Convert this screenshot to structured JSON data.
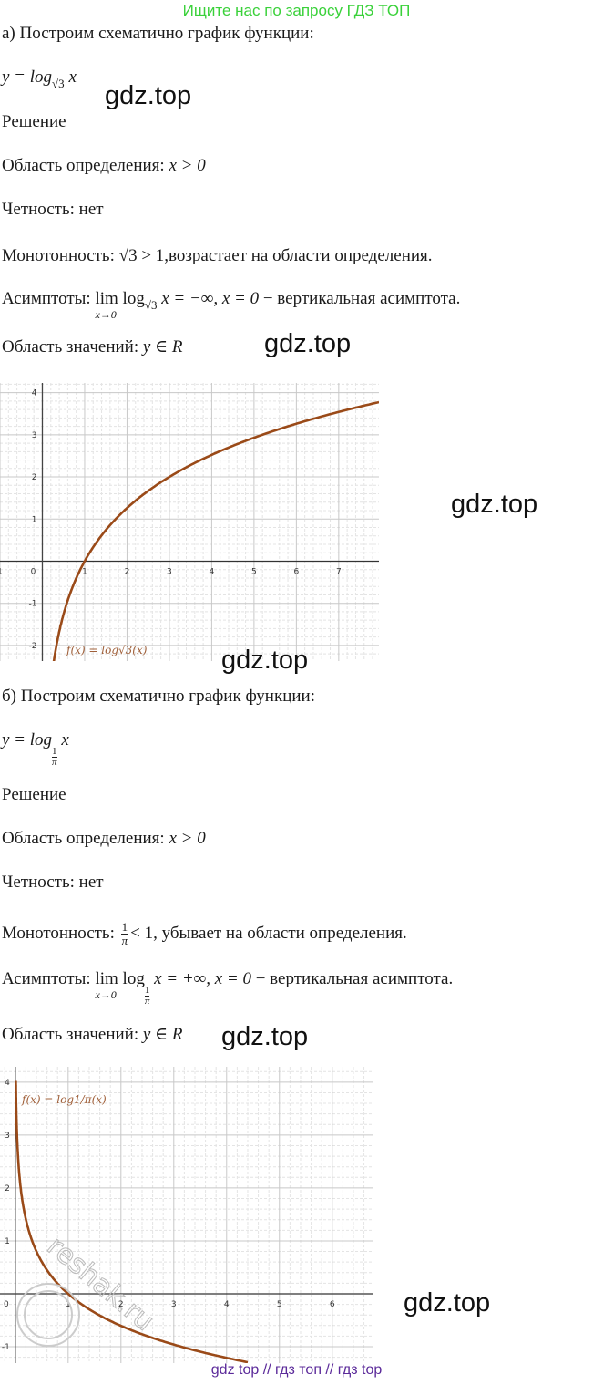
{
  "banner": "Ищите нас по запросу ГДЗ ТОП",
  "watermark": "gdz.top",
  "footer": "gdz top  //  гдз топ  //  гдз top",
  "part_a": {
    "heading": "а) Построим схематично график функции:",
    "formula": {
      "lhs": "y = log",
      "base": "√3",
      "arg": " x"
    },
    "solution": "Решение",
    "domain": {
      "label": "Область определения: ",
      "value": "x > 0"
    },
    "parity": "Четность: нет",
    "monotonic": {
      "label": "Монотонность:  ",
      "expr": "√3 > 1",
      "text": ",возрастает на области определения."
    },
    "asymptotes": {
      "label": "Асимптоты: ",
      "lim": "lim",
      "lim_under": "x→0",
      "log": "log",
      "base": "√3",
      "expr": " x = −∞,  x = 0",
      "text": "  −  вертикальная асимптота."
    },
    "range": {
      "label": "Область значений: ",
      "value": "y ∈ R"
    }
  },
  "part_b": {
    "heading": "б) Построим схематично график функции:",
    "formula": {
      "lhs": "y = log",
      "base_num": "1",
      "base_den": "π",
      "arg": " x"
    },
    "solution": "Решение",
    "domain": {
      "label": "Область определения: ",
      "value": "x > 0"
    },
    "parity": "Четность: нет",
    "monotonic": {
      "label": "Монотонность:  ",
      "frac_num": "1",
      "frac_den": "π",
      "expr": "< 1",
      "text": ", убывает на области определения."
    },
    "asymptotes": {
      "label": "Асимптоты: ",
      "lim": "lim",
      "lim_under": "x→0",
      "log": "log",
      "base_num": "1",
      "base_den": "π",
      "expr": " x = +∞,  x = 0",
      "text": "  −  вертикальная асимптота."
    },
    "range": {
      "label": "Область значений: ",
      "value": "y ∈ R"
    }
  },
  "chart_data": [
    {
      "type": "line",
      "function": "log_sqrt3(x)",
      "label": "f(x)  =  log√3(x)",
      "base": 1.7320508,
      "xlim": [
        -1,
        7.95
      ],
      "ylim": [
        -2.37,
        4.23
      ],
      "x_ticks": [
        "1",
        "0",
        "1",
        "2",
        "3",
        "4",
        "5",
        "6",
        "7"
      ],
      "y_ticks": [
        "4",
        "3",
        "2",
        "1",
        "-1",
        "-2"
      ],
      "grid": true,
      "curve_color": "#9a4a18",
      "points": [
        [
          0.15,
          -3.45
        ],
        [
          0.25,
          -2.52
        ],
        [
          0.5,
          -1.26
        ],
        [
          1,
          0
        ],
        [
          2,
          1.26
        ],
        [
          3,
          2
        ],
        [
          4,
          2.52
        ],
        [
          5,
          2.93
        ],
        [
          6,
          3.26
        ],
        [
          7,
          3.54
        ],
        [
          7.95,
          3.77
        ]
      ]
    },
    {
      "type": "line",
      "function": "log_1/π(x)",
      "label": "f(x)  =  log1/π(x)",
      "base": 0.3183099,
      "xlim": [
        -0.29,
        6.78
      ],
      "ylim": [
        -1.31,
        4.29
      ],
      "x_ticks": [
        "0",
        "1",
        "2",
        "3",
        "4",
        "5",
        "6"
      ],
      "y_ticks": [
        "4",
        "3",
        "2",
        "1",
        "-1"
      ],
      "grid": true,
      "curve_color": "#9a4a18",
      "watermark": "reshak.ru",
      "points": [
        [
          0.01,
          4.02
        ],
        [
          0.05,
          2.62
        ],
        [
          0.25,
          1.21
        ],
        [
          0.5,
          0.61
        ],
        [
          1,
          0
        ],
        [
          2,
          -0.61
        ],
        [
          3,
          -0.96
        ],
        [
          4,
          -1.21
        ],
        [
          4.4,
          -1.29
        ]
      ]
    }
  ]
}
